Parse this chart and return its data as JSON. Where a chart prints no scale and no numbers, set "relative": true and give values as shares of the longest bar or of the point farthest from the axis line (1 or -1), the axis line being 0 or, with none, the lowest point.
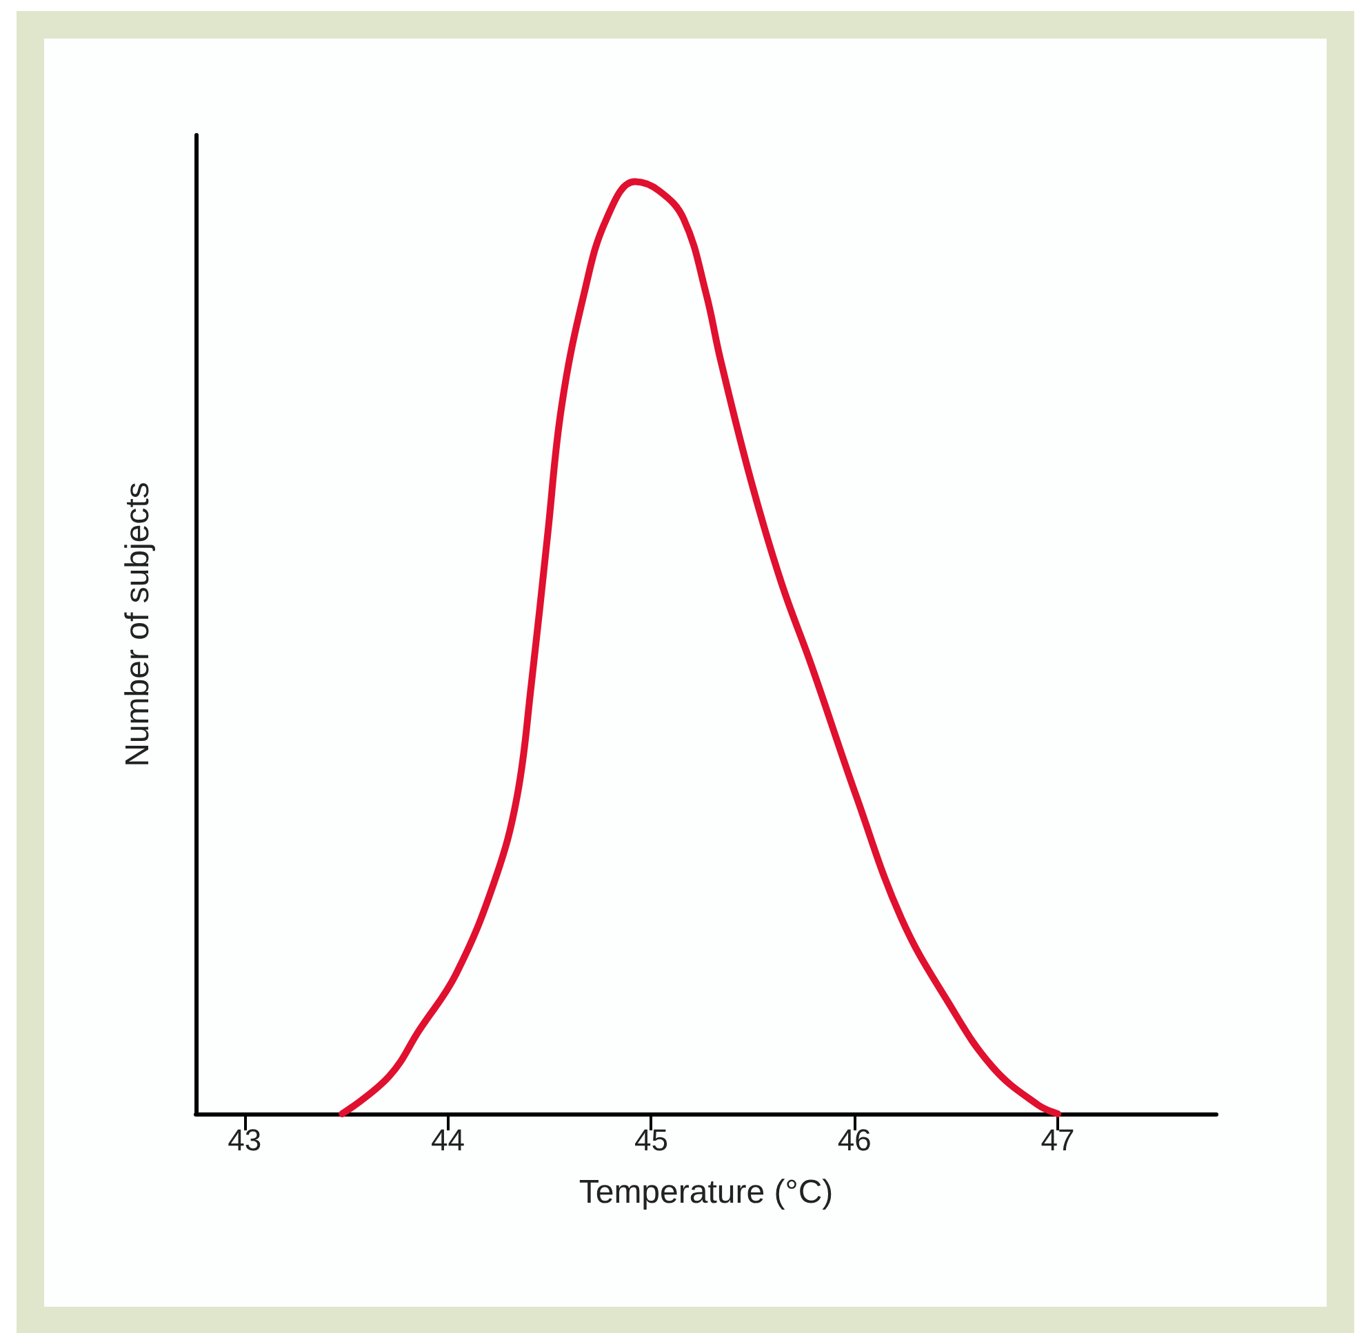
{
  "chart_data": {
    "type": "line",
    "xlabel": "Temperature (°C)",
    "ylabel": "Number of subjects",
    "relative": true,
    "xlim": [
      42.76,
      47.78
    ],
    "xticks": [
      43,
      44,
      45,
      46,
      47
    ],
    "grid": false,
    "marker": "none",
    "line_style": "solid",
    "series": [
      {
        "color": "#e0102f",
        "x": [
          43.48,
          43.71,
          43.86,
          44.04,
          44.23,
          44.34,
          44.41,
          44.49,
          44.56,
          44.67,
          44.78,
          44.92,
          45.04,
          45.16,
          45.27,
          45.34,
          45.49,
          45.64,
          45.79,
          46.01,
          46.23,
          46.46,
          46.68,
          46.9,
          47.0
        ],
        "values": [
          0,
          0.04,
          0.09,
          0.15,
          0.25,
          0.34,
          0.46,
          0.62,
          0.76,
          0.88,
          0.96,
          1,
          0.99,
          0.96,
          0.88,
          0.81,
          0.68,
          0.57,
          0.48,
          0.34,
          0.21,
          0.12,
          0.05,
          0.01,
          0
        ]
      }
    ]
  }
}
